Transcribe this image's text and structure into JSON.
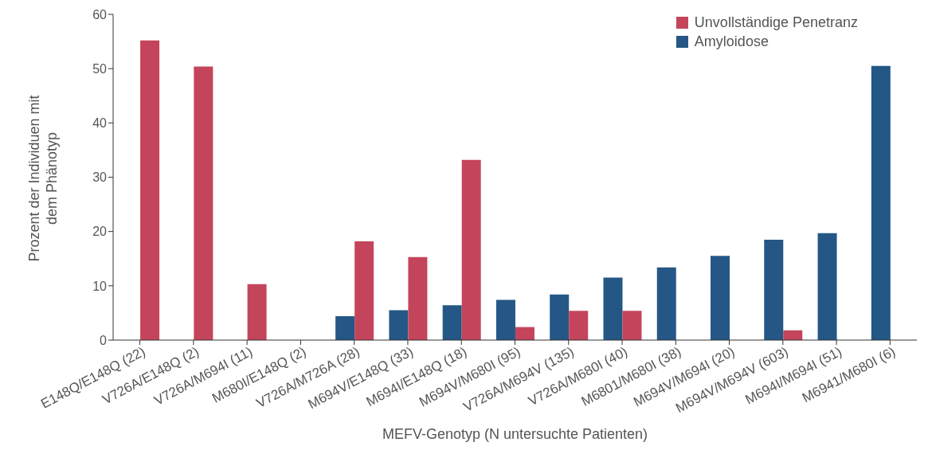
{
  "chart_data": {
    "type": "bar",
    "xlabel": "MEFV-Genotyp (N untersuchte Patienten)",
    "ylabel": "Prozent der Individuen mit\ndem Phänotyp",
    "categories": [
      "E148Q/E148Q (22)",
      "V726A/E148Q (2)",
      "V726A/M694I (11)",
      "M680I/E148Q (2)",
      "V726A/M726A (28)",
      "M694V/E148Q (33)",
      "M694I/E148Q (18)",
      "M694V/M680I (95)",
      "V726A/M694V (135)",
      "V726A/M680I (40)",
      "M6801/M680I (38)",
      "M694V/M694I (20)",
      "M694V/M694V (603)",
      "M694I/M694I (51)",
      "M6941/M680I (6)"
    ],
    "series": [
      {
        "name": "Unvollständige Penetranz",
        "color": "#c4455b",
        "values": [
          55.2,
          50.4,
          10.3,
          0,
          18.2,
          15.3,
          33.2,
          2.4,
          5.4,
          5.4,
          0,
          0,
          1.8,
          0,
          0
        ]
      },
      {
        "name": "Amyloidose",
        "color": "#245785",
        "values": [
          0,
          0,
          0,
          0,
          4.4,
          5.5,
          6.4,
          7.4,
          8.4,
          11.5,
          13.4,
          15.5,
          18.5,
          19.7,
          50.5
        ]
      }
    ],
    "ylim": [
      0,
      60
    ],
    "yticks": [
      0,
      10,
      20,
      30,
      40,
      50,
      60
    ],
    "legend": "top right"
  }
}
